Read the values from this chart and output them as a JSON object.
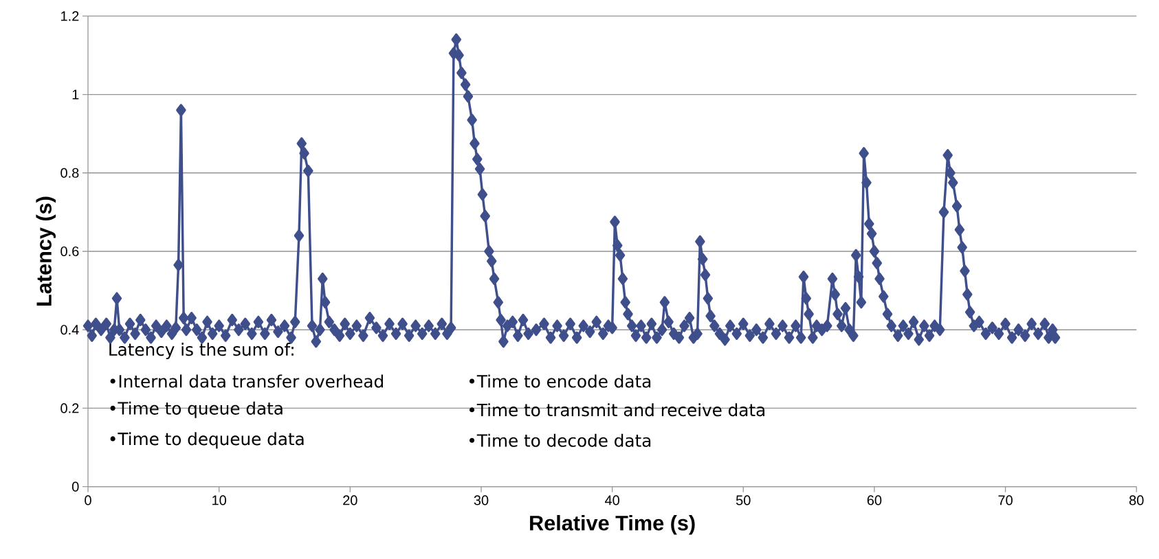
{
  "chart_data": {
    "type": "line",
    "xlabel": "Relative Time (s)",
    "ylabel": "Latency (s)",
    "xlim": [
      0,
      80
    ],
    "xticks": [
      0,
      10,
      20,
      30,
      40,
      50,
      60,
      70,
      80
    ],
    "ylim": [
      0,
      1.2
    ],
    "yticks": [
      0,
      0.2,
      0.4,
      0.6,
      0.8,
      1,
      1.2
    ],
    "grid": "y",
    "marker": "diamond",
    "line_style": "solid",
    "annotations": [
      "Latency is the sum of:",
      "•Internal data transfer overhead",
      "•Time to queue data",
      "•Time to dequeue data",
      "•Time to encode data",
      "•Time to transmit and receive data",
      "•Time to decode data"
    ],
    "series": [
      {
        "color": "#3f4f8c",
        "x": [
          0,
          0.3,
          0.6,
          1.0,
          1.4,
          1.7,
          2.0,
          2.2,
          2.4,
          2.8,
          3.2,
          3.6,
          4.0,
          4.4,
          4.8,
          5.2,
          5.6,
          6.0,
          6.4,
          6.7,
          6.9,
          7.1,
          7.3,
          7.5,
          7.9,
          8.3,
          8.7,
          9.1,
          9.5,
          10,
          10.5,
          11,
          11.5,
          12,
          12.5,
          13,
          13.5,
          14,
          14.5,
          15,
          15.5,
          15.8,
          16.1,
          16.3,
          16.5,
          16.8,
          17.1,
          17.4,
          17.7,
          17.9,
          18.1,
          18.4,
          18.8,
          19.2,
          19.6,
          20,
          20.5,
          21,
          21.5,
          22,
          22.5,
          23,
          23.5,
          24,
          24.5,
          25,
          25.5,
          26,
          26.5,
          27,
          27.4,
          27.7,
          27.9,
          28.1,
          28.3,
          28.5,
          28.8,
          29.0,
          29.3,
          29.5,
          29.7,
          29.9,
          30.1,
          30.3,
          30.6,
          30.8,
          31.0,
          31.3,
          31.5,
          31.7,
          32,
          32.4,
          32.8,
          33.2,
          33.6,
          34.2,
          34.8,
          35.3,
          35.8,
          36.3,
          36.8,
          37.3,
          37.8,
          38.3,
          38.8,
          39.3,
          39.7,
          40.0,
          40.2,
          40.4,
          40.6,
          40.8,
          41.0,
          41.2,
          41.5,
          41.8,
          42.2,
          42.6,
          43.0,
          43.4,
          43.8,
          44.0,
          44.3,
          44.7,
          45.1,
          45.5,
          45.9,
          46.2,
          46.5,
          46.7,
          46.9,
          47.1,
          47.3,
          47.5,
          47.8,
          48.2,
          48.6,
          49,
          49.5,
          50,
          50.5,
          51,
          51.5,
          52,
          52.5,
          53,
          53.5,
          54,
          54.4,
          54.6,
          54.8,
          55.0,
          55.3,
          55.6,
          56,
          56.4,
          56.8,
          57.0,
          57.2,
          57.5,
          57.8,
          58.1,
          58.4,
          58.6,
          58.8,
          59.0,
          59.2,
          59.4,
          59.6,
          59.8,
          60.0,
          60.2,
          60.4,
          60.7,
          61.0,
          61.3,
          61.8,
          62.2,
          62.6,
          63.0,
          63.4,
          63.8,
          64.2,
          64.6,
          65.0,
          65.3,
          65.6,
          65.8,
          66.0,
          66.3,
          66.5,
          66.7,
          66.9,
          67.1,
          67.3,
          67.6,
          68,
          68.5,
          69,
          69.5,
          70,
          70.5,
          71,
          71.5,
          72,
          72.5,
          73,
          73.3,
          73.6,
          73.8
        ],
        "values": [
          0.41,
          0.385,
          0.415,
          0.4,
          0.415,
          0.38,
          0.4,
          0.48,
          0.4,
          0.38,
          0.415,
          0.39,
          0.425,
          0.4,
          0.38,
          0.41,
          0.395,
          0.41,
          0.39,
          0.405,
          0.565,
          0.96,
          0.43,
          0.4,
          0.43,
          0.4,
          0.38,
          0.42,
          0.39,
          0.41,
          0.385,
          0.425,
          0.4,
          0.415,
          0.39,
          0.42,
          0.39,
          0.425,
          0.395,
          0.41,
          0.38,
          0.42,
          0.64,
          0.875,
          0.85,
          0.805,
          0.41,
          0.37,
          0.4,
          0.53,
          0.47,
          0.42,
          0.4,
          0.385,
          0.415,
          0.39,
          0.41,
          0.385,
          0.43,
          0.405,
          0.385,
          0.415,
          0.39,
          0.415,
          0.385,
          0.41,
          0.39,
          0.41,
          0.39,
          0.415,
          0.39,
          0.405,
          1.105,
          1.14,
          1.1,
          1.055,
          1.025,
          0.995,
          0.935,
          0.875,
          0.835,
          0.81,
          0.745,
          0.69,
          0.6,
          0.575,
          0.53,
          0.47,
          0.425,
          0.37,
          0.41,
          0.42,
          0.385,
          0.425,
          0.39,
          0.4,
          0.415,
          0.38,
          0.41,
          0.385,
          0.415,
          0.38,
          0.41,
          0.395,
          0.42,
          0.39,
          0.41,
          0.405,
          0.675,
          0.615,
          0.59,
          0.53,
          0.47,
          0.44,
          0.41,
          0.385,
          0.41,
          0.38,
          0.415,
          0.38,
          0.4,
          0.47,
          0.42,
          0.39,
          0.38,
          0.41,
          0.43,
          0.38,
          0.39,
          0.625,
          0.58,
          0.54,
          0.48,
          0.435,
          0.41,
          0.39,
          0.375,
          0.41,
          0.39,
          0.415,
          0.385,
          0.4,
          0.38,
          0.415,
          0.39,
          0.41,
          0.38,
          0.41,
          0.38,
          0.535,
          0.48,
          0.44,
          0.38,
          0.41,
          0.4,
          0.41,
          0.53,
          0.49,
          0.44,
          0.41,
          0.455,
          0.4,
          0.385,
          0.59,
          0.535,
          0.47,
          0.85,
          0.775,
          0.67,
          0.645,
          0.6,
          0.57,
          0.53,
          0.485,
          0.44,
          0.41,
          0.385,
          0.41,
          0.39,
          0.42,
          0.375,
          0.41,
          0.385,
          0.41,
          0.4,
          0.7,
          0.845,
          0.8,
          0.775,
          0.715,
          0.655,
          0.61,
          0.55,
          0.49,
          0.445,
          0.41,
          0.42,
          0.39,
          0.405,
          0.39,
          0.415,
          0.38,
          0.4,
          0.385,
          0.415,
          0.39,
          0.415,
          0.38,
          0.4,
          0.38
        ]
      }
    ]
  }
}
